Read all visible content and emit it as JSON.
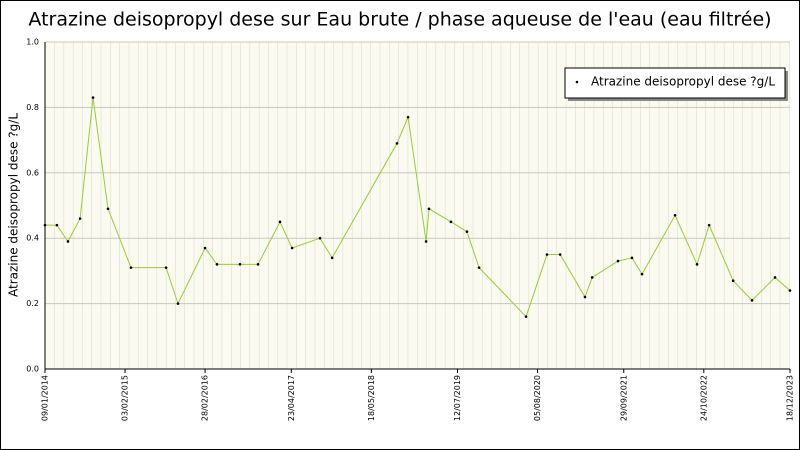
{
  "chart_data": {
    "type": "line",
    "title": "Atrazine deisopropyl dese sur Eau brute / phase aqueuse de l'eau (eau filtrée)",
    "y_label": "Atrazine deisopropyl dese ?g/L",
    "x": [
      "2014-01-09",
      "2014-03-08",
      "2014-05-01",
      "2014-06-29",
      "2014-08-31",
      "2014-11-12",
      "2015-03-04",
      "2015-08-22",
      "2015-10-19",
      "2016-02-28",
      "2016-04-26",
      "2016-08-16",
      "2016-11-12",
      "2017-02-27",
      "2017-04-27",
      "2017-09-10",
      "2017-11-08",
      "2018-09-20",
      "2018-11-13",
      "2019-02-09",
      "2019-02-23",
      "2019-06-10",
      "2019-08-27",
      "2019-10-25",
      "2020-06-10",
      "2020-09-20",
      "2020-11-23",
      "2021-03-24",
      "2021-04-28",
      "2021-09-01",
      "2021-11-08",
      "2021-12-27",
      "2022-06-06",
      "2022-09-21",
      "2022-11-19",
      "2023-03-16",
      "2023-06-16",
      "2023-10-06",
      "2023-12-18"
    ],
    "series": [
      {
        "name": "Atrazine deisopropyl dese ?g/L",
        "color": "#99cc33",
        "values": [
          0.44,
          0.44,
          0.39,
          0.46,
          0.83,
          0.49,
          0.31,
          0.31,
          0.2,
          0.37,
          0.32,
          0.32,
          0.32,
          0.45,
          0.37,
          0.4,
          0.34,
          0.69,
          0.77,
          0.39,
          0.49,
          0.45,
          0.42,
          0.31,
          0.16,
          0.35,
          0.35,
          0.22,
          0.28,
          0.33,
          0.34,
          0.29,
          0.47,
          0.32,
          0.44,
          0.27,
          0.21,
          0.28,
          0.24
        ]
      }
    ],
    "xlim": [
      "2014-01-09",
      "2023-12-18"
    ],
    "xticks": [
      {
        "value": "2014-01-09",
        "label": "09/01/2014"
      },
      {
        "value": "2015-02-03",
        "label": "03/02/2015"
      },
      {
        "value": "2016-02-28",
        "label": "28/02/2016"
      },
      {
        "value": "2017-04-23",
        "label": "23/04/2017"
      },
      {
        "value": "2018-05-18",
        "label": "18/05/2018"
      },
      {
        "value": "2019-07-12",
        "label": "12/07/2019"
      },
      {
        "value": "2020-08-05",
        "label": "05/08/2020"
      },
      {
        "value": "2021-09-29",
        "label": "29/09/2021"
      },
      {
        "value": "2022-10-24",
        "label": "24/10/2022"
      },
      {
        "value": "2023-12-18",
        "label": "18/12/2023"
      }
    ],
    "ylim": [
      0,
      1
    ],
    "yticks": [
      {
        "value": 0,
        "label": "0.0"
      },
      0.2,
      0.4,
      0.6,
      0.8,
      {
        "value": 1,
        "label": "1.0"
      }
    ],
    "grid": true,
    "legend": "top-right"
  }
}
